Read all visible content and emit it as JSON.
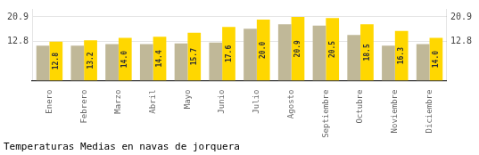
{
  "chart_data": {
    "type": "bar",
    "title": "Temperaturas Medias en navas de jorquera",
    "categories": [
      "Enero",
      "Febrero",
      "Marzo",
      "Abril",
      "Mayo",
      "Junio",
      "Julio",
      "Agosto",
      "Septiembre",
      "Octubre",
      "Noviembre",
      "Diciembre"
    ],
    "series": [
      {
        "color": "#C0B898",
        "values": [
          11.5,
          11.5,
          12.0,
          12.0,
          12.2,
          12.5,
          17.0,
          18.5,
          18.0,
          15.0,
          11.5,
          12.0
        ]
      },
      {
        "color": "#FFD700",
        "values": [
          12.8,
          13.2,
          14.0,
          14.4,
          15.7,
          17.6,
          20.0,
          20.9,
          20.5,
          18.5,
          16.3,
          14.0
        ],
        "data_labels": true,
        "value_labels": [
          "12.8",
          "13.2",
          "14.0",
          "14.4",
          "15.7",
          "17.6",
          "20.0",
          "20.9",
          "20.5",
          "18.5",
          "16.3",
          "14.0"
        ]
      }
    ],
    "ylim": [
      0,
      23.5
    ],
    "yticks": [
      12.8,
      20.9
    ],
    "y2lim": [
      0,
      23.5
    ],
    "y2ticks": [
      12.8,
      20.9
    ],
    "grid": true
  }
}
